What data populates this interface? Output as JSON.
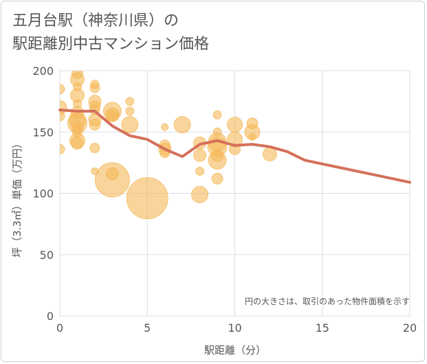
{
  "chart_data": {
    "type": "scatter",
    "title": "五月台駅（神奈川県）の\n駅距離別中古マンション価格",
    "xlabel": "駅距離（分）",
    "ylabel": "坪（3.3㎡）単価（万円）",
    "xlim": [
      0,
      20
    ],
    "ylim": [
      0,
      200
    ],
    "xticks": [
      0,
      5,
      10,
      15,
      20
    ],
    "yticks": [
      0,
      50,
      100,
      150,
      200
    ],
    "grid": true,
    "annotation": "円の大きさは、取引のあった物件面積を示す",
    "colors": {
      "bubble": "#f5b95a",
      "line": "#d4705a",
      "grid": "#d8dde6",
      "tick": "#555555"
    },
    "bubbles": [
      {
        "x": 0,
        "y": 185,
        "s": 7
      },
      {
        "x": 0,
        "y": 170,
        "s": 10
      },
      {
        "x": 0,
        "y": 163,
        "s": 7
      },
      {
        "x": 0,
        "y": 136,
        "s": 7
      },
      {
        "x": 1,
        "y": 198,
        "s": 8
      },
      {
        "x": 1,
        "y": 193,
        "s": 10
      },
      {
        "x": 1,
        "y": 187,
        "s": 6
      },
      {
        "x": 1,
        "y": 180,
        "s": 10
      },
      {
        "x": 1,
        "y": 173,
        "s": 6
      },
      {
        "x": 1,
        "y": 166,
        "s": 9
      },
      {
        "x": 1,
        "y": 160,
        "s": 12
      },
      {
        "x": 1,
        "y": 157,
        "s": 14
      },
      {
        "x": 1,
        "y": 154,
        "s": 8
      },
      {
        "x": 1,
        "y": 150,
        "s": 7
      },
      {
        "x": 1,
        "y": 143,
        "s": 11
      },
      {
        "x": 1,
        "y": 141,
        "s": 9
      },
      {
        "x": 2,
        "y": 189,
        "s": 6
      },
      {
        "x": 2,
        "y": 186,
        "s": 7
      },
      {
        "x": 2,
        "y": 175,
        "s": 9
      },
      {
        "x": 2,
        "y": 171,
        "s": 8
      },
      {
        "x": 2,
        "y": 168,
        "s": 7
      },
      {
        "x": 2,
        "y": 160,
        "s": 9
      },
      {
        "x": 2,
        "y": 156,
        "s": 8
      },
      {
        "x": 2,
        "y": 137,
        "s": 7
      },
      {
        "x": 2,
        "y": 118,
        "s": 5
      },
      {
        "x": 3,
        "y": 167,
        "s": 13
      },
      {
        "x": 3,
        "y": 164,
        "s": 10
      },
      {
        "x": 3,
        "y": 163,
        "s": 8
      },
      {
        "x": 3,
        "y": 111,
        "s": 25
      },
      {
        "x": 3,
        "y": 116,
        "s": 9
      },
      {
        "x": 4,
        "y": 175,
        "s": 6
      },
      {
        "x": 4,
        "y": 167,
        "s": 6
      },
      {
        "x": 4,
        "y": 156,
        "s": 12
      },
      {
        "x": 5,
        "y": 96,
        "s": 30
      },
      {
        "x": 6,
        "y": 154,
        "s": 5
      },
      {
        "x": 6,
        "y": 139,
        "s": 8
      },
      {
        "x": 6,
        "y": 136,
        "s": 9
      },
      {
        "x": 6,
        "y": 133,
        "s": 7
      },
      {
        "x": 7,
        "y": 156,
        "s": 12
      },
      {
        "x": 8,
        "y": 141,
        "s": 9
      },
      {
        "x": 8,
        "y": 131,
        "s": 9
      },
      {
        "x": 8,
        "y": 118,
        "s": 6
      },
      {
        "x": 8,
        "y": 99,
        "s": 12
      },
      {
        "x": 9,
        "y": 164,
        "s": 6
      },
      {
        "x": 9,
        "y": 150,
        "s": 6
      },
      {
        "x": 9,
        "y": 142,
        "s": 13
      },
      {
        "x": 9,
        "y": 138,
        "s": 14
      },
      {
        "x": 9,
        "y": 131,
        "s": 9
      },
      {
        "x": 9,
        "y": 127,
        "s": 13
      },
      {
        "x": 9,
        "y": 112,
        "s": 8
      },
      {
        "x": 10,
        "y": 156,
        "s": 11
      },
      {
        "x": 10,
        "y": 144,
        "s": 11
      },
      {
        "x": 10,
        "y": 136,
        "s": 8
      },
      {
        "x": 11,
        "y": 157,
        "s": 8
      },
      {
        "x": 11,
        "y": 150,
        "s": 11
      },
      {
        "x": 11,
        "y": 146,
        "s": 5
      },
      {
        "x": 12,
        "y": 132,
        "s": 10
      }
    ],
    "trend": {
      "x": [
        0,
        1,
        2,
        3,
        4,
        5,
        6,
        7,
        8,
        9,
        10,
        11,
        12,
        13,
        14,
        15,
        16,
        17,
        18,
        19,
        20
      ],
      "y": [
        168,
        167,
        167,
        155,
        147,
        144,
        136,
        130,
        140,
        143,
        139,
        140,
        138,
        134,
        127,
        124,
        121,
        118,
        115,
        112,
        109
      ]
    }
  }
}
